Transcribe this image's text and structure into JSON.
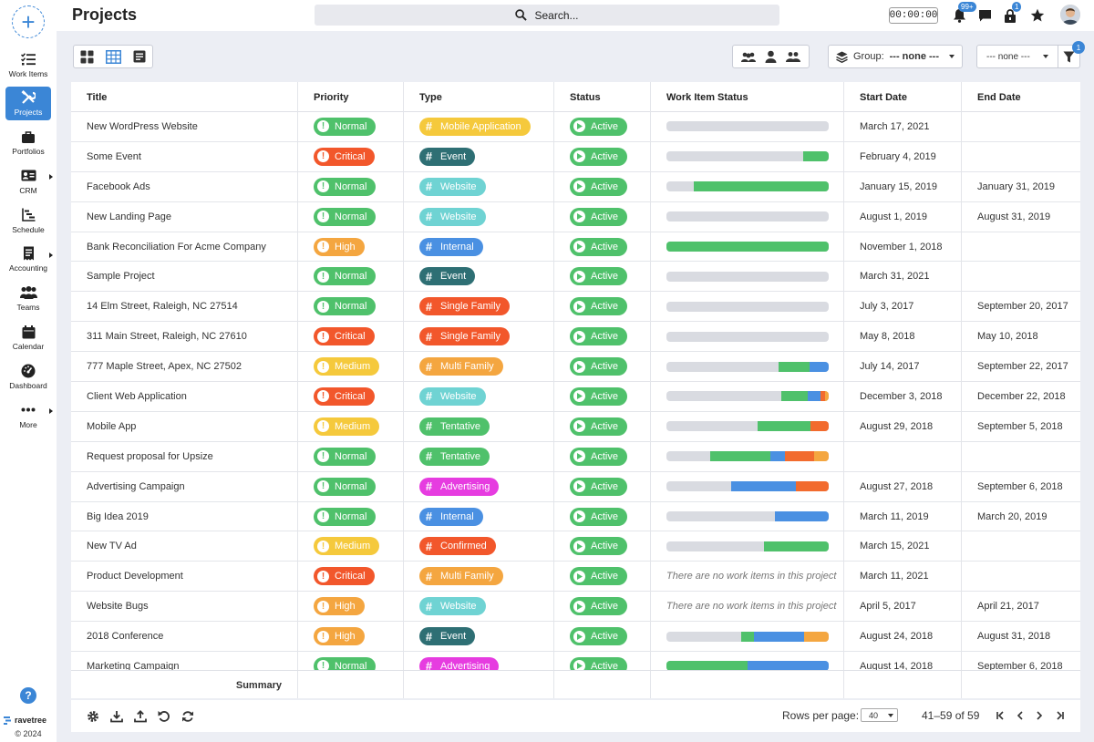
{
  "app": {
    "brand": "ravetree",
    "copyright": "© 2024",
    "help": "?"
  },
  "sidebar": {
    "items": [
      {
        "label": "Work Items",
        "icon": "checklist-icon",
        "active": false,
        "caret": false
      },
      {
        "label": "Projects",
        "icon": "tools-icon",
        "active": true,
        "caret": false
      },
      {
        "label": "Portfolios",
        "icon": "briefcase-icon",
        "active": false,
        "caret": false
      },
      {
        "label": "CRM",
        "icon": "contact-card-icon",
        "active": false,
        "caret": true
      },
      {
        "label": "Schedule",
        "icon": "gantt-icon",
        "active": false,
        "caret": false
      },
      {
        "label": "Accounting",
        "icon": "receipt-icon",
        "active": false,
        "caret": true
      },
      {
        "label": "Teams",
        "icon": "team-icon",
        "active": false,
        "caret": false
      },
      {
        "label": "Calendar",
        "icon": "calendar-icon",
        "active": false,
        "caret": false
      },
      {
        "label": "Dashboard",
        "icon": "gauge-icon",
        "active": false,
        "caret": false
      },
      {
        "label": "More",
        "icon": "more-icon",
        "active": false,
        "caret": true
      }
    ]
  },
  "header": {
    "title": "Projects",
    "search_placeholder": "Search...",
    "timer": "00:00:00",
    "notifications_badge": "99+",
    "lock_badge": "1"
  },
  "toolbar": {
    "group_label": "Group:",
    "group_value": "--- none ---",
    "secondary_value": "--- none ---",
    "filter_badge": "1"
  },
  "table": {
    "columns": [
      "Title",
      "Priority",
      "Type",
      "Status",
      "Work Item Status",
      "Start Date",
      "End Date"
    ],
    "summary_label": "Summary",
    "rows": [
      {
        "title": "New WordPress Website",
        "priority": "Normal",
        "type": "Mobile Application",
        "status": "Active",
        "progress": [],
        "start": "March 17, 2021",
        "end": ""
      },
      {
        "title": "Some Event",
        "priority": "Critical",
        "type": "Event",
        "status": "Active",
        "progress": [
          [
            0.84,
            0.16,
            "#4fc16b"
          ]
        ],
        "start": "February 4, 2019",
        "end": ""
      },
      {
        "title": "Facebook Ads",
        "priority": "Normal",
        "type": "Website",
        "status": "Active",
        "progress": [
          [
            0.17,
            0.83,
            "#4fc16b"
          ]
        ],
        "start": "January 15, 2019",
        "end": "January 31, 2019"
      },
      {
        "title": "New Landing Page",
        "priority": "Normal",
        "type": "Website",
        "status": "Active",
        "progress": [],
        "start": "August 1, 2019",
        "end": "August 31, 2019"
      },
      {
        "title": "Bank Reconciliation For Acme Company",
        "priority": "High",
        "type": "Internal",
        "status": "Active",
        "progress": [
          [
            0,
            1,
            "#4fc16b"
          ]
        ],
        "start": "November 1, 2018",
        "end": ""
      },
      {
        "title": "Sample Project",
        "priority": "Normal",
        "type": "Event",
        "status": "Active",
        "progress": [],
        "start": "March 31, 2021",
        "end": ""
      },
      {
        "title": "14 Elm Street, Raleigh, NC 27514",
        "priority": "Normal",
        "type": "Single Family",
        "status": "Active",
        "progress": [],
        "start": "July 3, 2017",
        "end": "September 20, 2017"
      },
      {
        "title": "311 Main Street, Raleigh, NC 27610",
        "priority": "Critical",
        "type": "Single Family",
        "status": "Active",
        "progress": [],
        "start": "May 8, 2018",
        "end": "May 10, 2018"
      },
      {
        "title": "777 Maple Street, Apex, NC 27502",
        "priority": "Medium",
        "type": "Multi Family",
        "status": "Active",
        "progress": [
          [
            0.69,
            0.19,
            "#4fc16b"
          ],
          [
            0.88,
            0.12,
            "#4a90e2"
          ]
        ],
        "start": "July 14, 2017",
        "end": "September 22, 2017"
      },
      {
        "title": "Client Web Application",
        "priority": "Critical",
        "type": "Website",
        "status": "Active",
        "progress": [
          [
            0.71,
            0.16,
            "#4fc16b"
          ],
          [
            0.87,
            0.08,
            "#4a90e2"
          ],
          [
            0.95,
            0.03,
            "#f26b2e"
          ],
          [
            0.98,
            0.02,
            "#f4a640"
          ]
        ],
        "start": "December 3, 2018",
        "end": "December 22, 2018"
      },
      {
        "title": "Mobile App",
        "priority": "Medium",
        "type": "Tentative",
        "status": "Active",
        "progress": [
          [
            0.56,
            0.33,
            "#4fc16b"
          ],
          [
            0.89,
            0.11,
            "#f26b2e"
          ]
        ],
        "start": "August 29, 2018",
        "end": "September 5, 2018"
      },
      {
        "title": "Request proposal for Upsize",
        "priority": "Normal",
        "type": "Tentative",
        "status": "Active",
        "progress": [
          [
            0.27,
            0.37,
            "#4fc16b"
          ],
          [
            0.64,
            0.09,
            "#4a90e2"
          ],
          [
            0.73,
            0.18,
            "#f26b2e"
          ],
          [
            0.91,
            0.09,
            "#f4a640"
          ]
        ],
        "start": "",
        "end": ""
      },
      {
        "title": "Advertising Campaign",
        "priority": "Normal",
        "type": "Advertising",
        "status": "Active",
        "progress": [
          [
            0.4,
            0.4,
            "#4a90e2"
          ],
          [
            0.8,
            0.2,
            "#f26b2e"
          ]
        ],
        "start": "August 27, 2018",
        "end": "September 6, 2018"
      },
      {
        "title": "Big Idea 2019",
        "priority": "Normal",
        "type": "Internal",
        "status": "Active",
        "progress": [
          [
            0.67,
            0.33,
            "#4a90e2"
          ]
        ],
        "start": "March 11, 2019",
        "end": "March 20, 2019"
      },
      {
        "title": "New TV Ad",
        "priority": "Medium",
        "type": "Confirmed",
        "status": "Active",
        "progress": [
          [
            0.6,
            0.4,
            "#4fc16b"
          ]
        ],
        "start": "March 15, 2021",
        "end": ""
      },
      {
        "title": "Product Development",
        "priority": "Critical",
        "type": "Multi Family",
        "status": "Active",
        "progress": null,
        "start": "March 11, 2021",
        "end": ""
      },
      {
        "title": "Website Bugs",
        "priority": "High",
        "type": "Website",
        "status": "Active",
        "progress": null,
        "start": "April 5, 2017",
        "end": "April 21, 2017"
      },
      {
        "title": "2018 Conference",
        "priority": "High",
        "type": "Event",
        "status": "Active",
        "progress": [
          [
            0.46,
            0.08,
            "#4fc16b"
          ],
          [
            0.54,
            0.31,
            "#4a90e2"
          ],
          [
            0.85,
            0.15,
            "#f4a640"
          ]
        ],
        "start": "August 24, 2018",
        "end": "August 31, 2018"
      },
      {
        "title": "Marketing Campaign",
        "priority": "Normal",
        "type": "Advertising",
        "status": "Active",
        "progress": [
          [
            0,
            0.5,
            "#4fc16b"
          ],
          [
            0.5,
            0.5,
            "#4a90e2"
          ]
        ],
        "start": "August 14, 2018",
        "end": "September 6, 2018"
      }
    ],
    "no_work_items_text": "There are no work items in this project"
  },
  "colors": {
    "priority": {
      "Normal": "#4fc16b",
      "Critical": "#f2572b",
      "High": "#f4a640",
      "Medium": "#f5c93c"
    },
    "type": {
      "Mobile Application": "#f5c93c",
      "Event": "#2e6f74",
      "Website": "#6fd3d3",
      "Internal": "#4a90e2",
      "Single Family": "#f2572b",
      "Multi Family": "#f4a640",
      "Tentative": "#4fc16b",
      "Advertising": "#e63ce0",
      "Confirmed": "#f2572b"
    }
  },
  "pagination": {
    "rows_per_page_label": "Rows per page:",
    "rows_per_page_value": "40",
    "range": "41–59 of 59"
  }
}
